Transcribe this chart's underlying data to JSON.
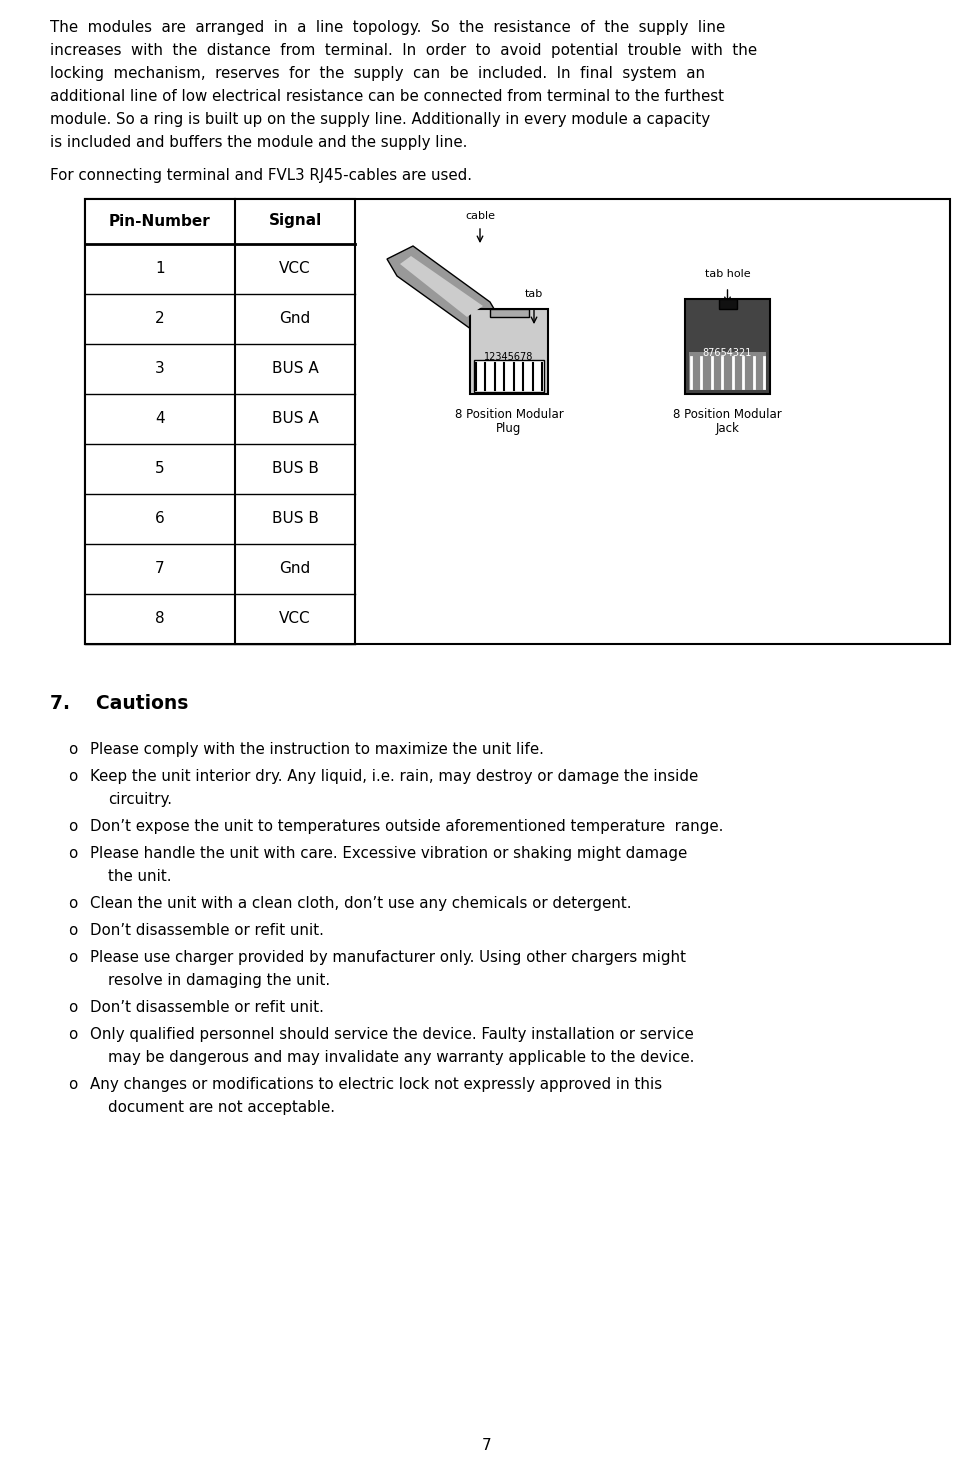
{
  "bg_color": "#ffffff",
  "page_number": "7",
  "connector_intro": "For connecting terminal and FVL3 RJ45-cables are used.",
  "table_headers": [
    "Pin-Number",
    "Signal"
  ],
  "table_rows": [
    [
      "1",
      "VCC"
    ],
    [
      "2",
      "Gnd"
    ],
    [
      "3",
      "BUS A"
    ],
    [
      "4",
      "BUS A"
    ],
    [
      "5",
      "BUS B"
    ],
    [
      "6",
      "BUS B"
    ],
    [
      "7",
      "Gnd"
    ],
    [
      "8",
      "VCC"
    ]
  ],
  "intro_lines": [
    "The  modules  are  arranged  in  a  line  topology.  So  the  resistance  of  the  supply  line",
    "increases  with  the  distance  from  terminal.  In  order  to  avoid  potential  trouble  with  the",
    "locking  mechanism,  reserves  for  the  supply  can  be  included.  In  final  system  an",
    "additional line of low electrical resistance can be connected from terminal to the furthest",
    "module. So a ring is built up on the supply line. Additionally in every module a capacity",
    "is included and buffers the module and the supply line."
  ],
  "cautions": [
    [
      "Please comply with the instruction to maximize the unit life."
    ],
    [
      "Keep the unit interior dry. Any liquid, i.e. rain, may destroy or damage the inside",
      "circuitry."
    ],
    [
      "Don’t expose the unit to temperatures outside aforementioned temperature  range."
    ],
    [
      "Please handle the unit with care. Excessive vibration or shaking might damage",
      "    the unit."
    ],
    [
      "Clean the unit with a clean cloth, don’t use any chemicals or detergent."
    ],
    [
      "Don’t disassemble or refit unit."
    ],
    [
      "Please use charger provided by manufacturer only. Using other chargers might",
      "   resolve in damaging the unit."
    ],
    [
      "Don’t disassemble or refit unit."
    ],
    [
      "Only qualified personnel should service the device. Faulty installation or service",
      "may be dangerous and may invalidate any warranty applicable to the device."
    ],
    [
      "Any changes or modifications to electric lock not expressly approved in this",
      "document are not acceptable."
    ]
  ]
}
